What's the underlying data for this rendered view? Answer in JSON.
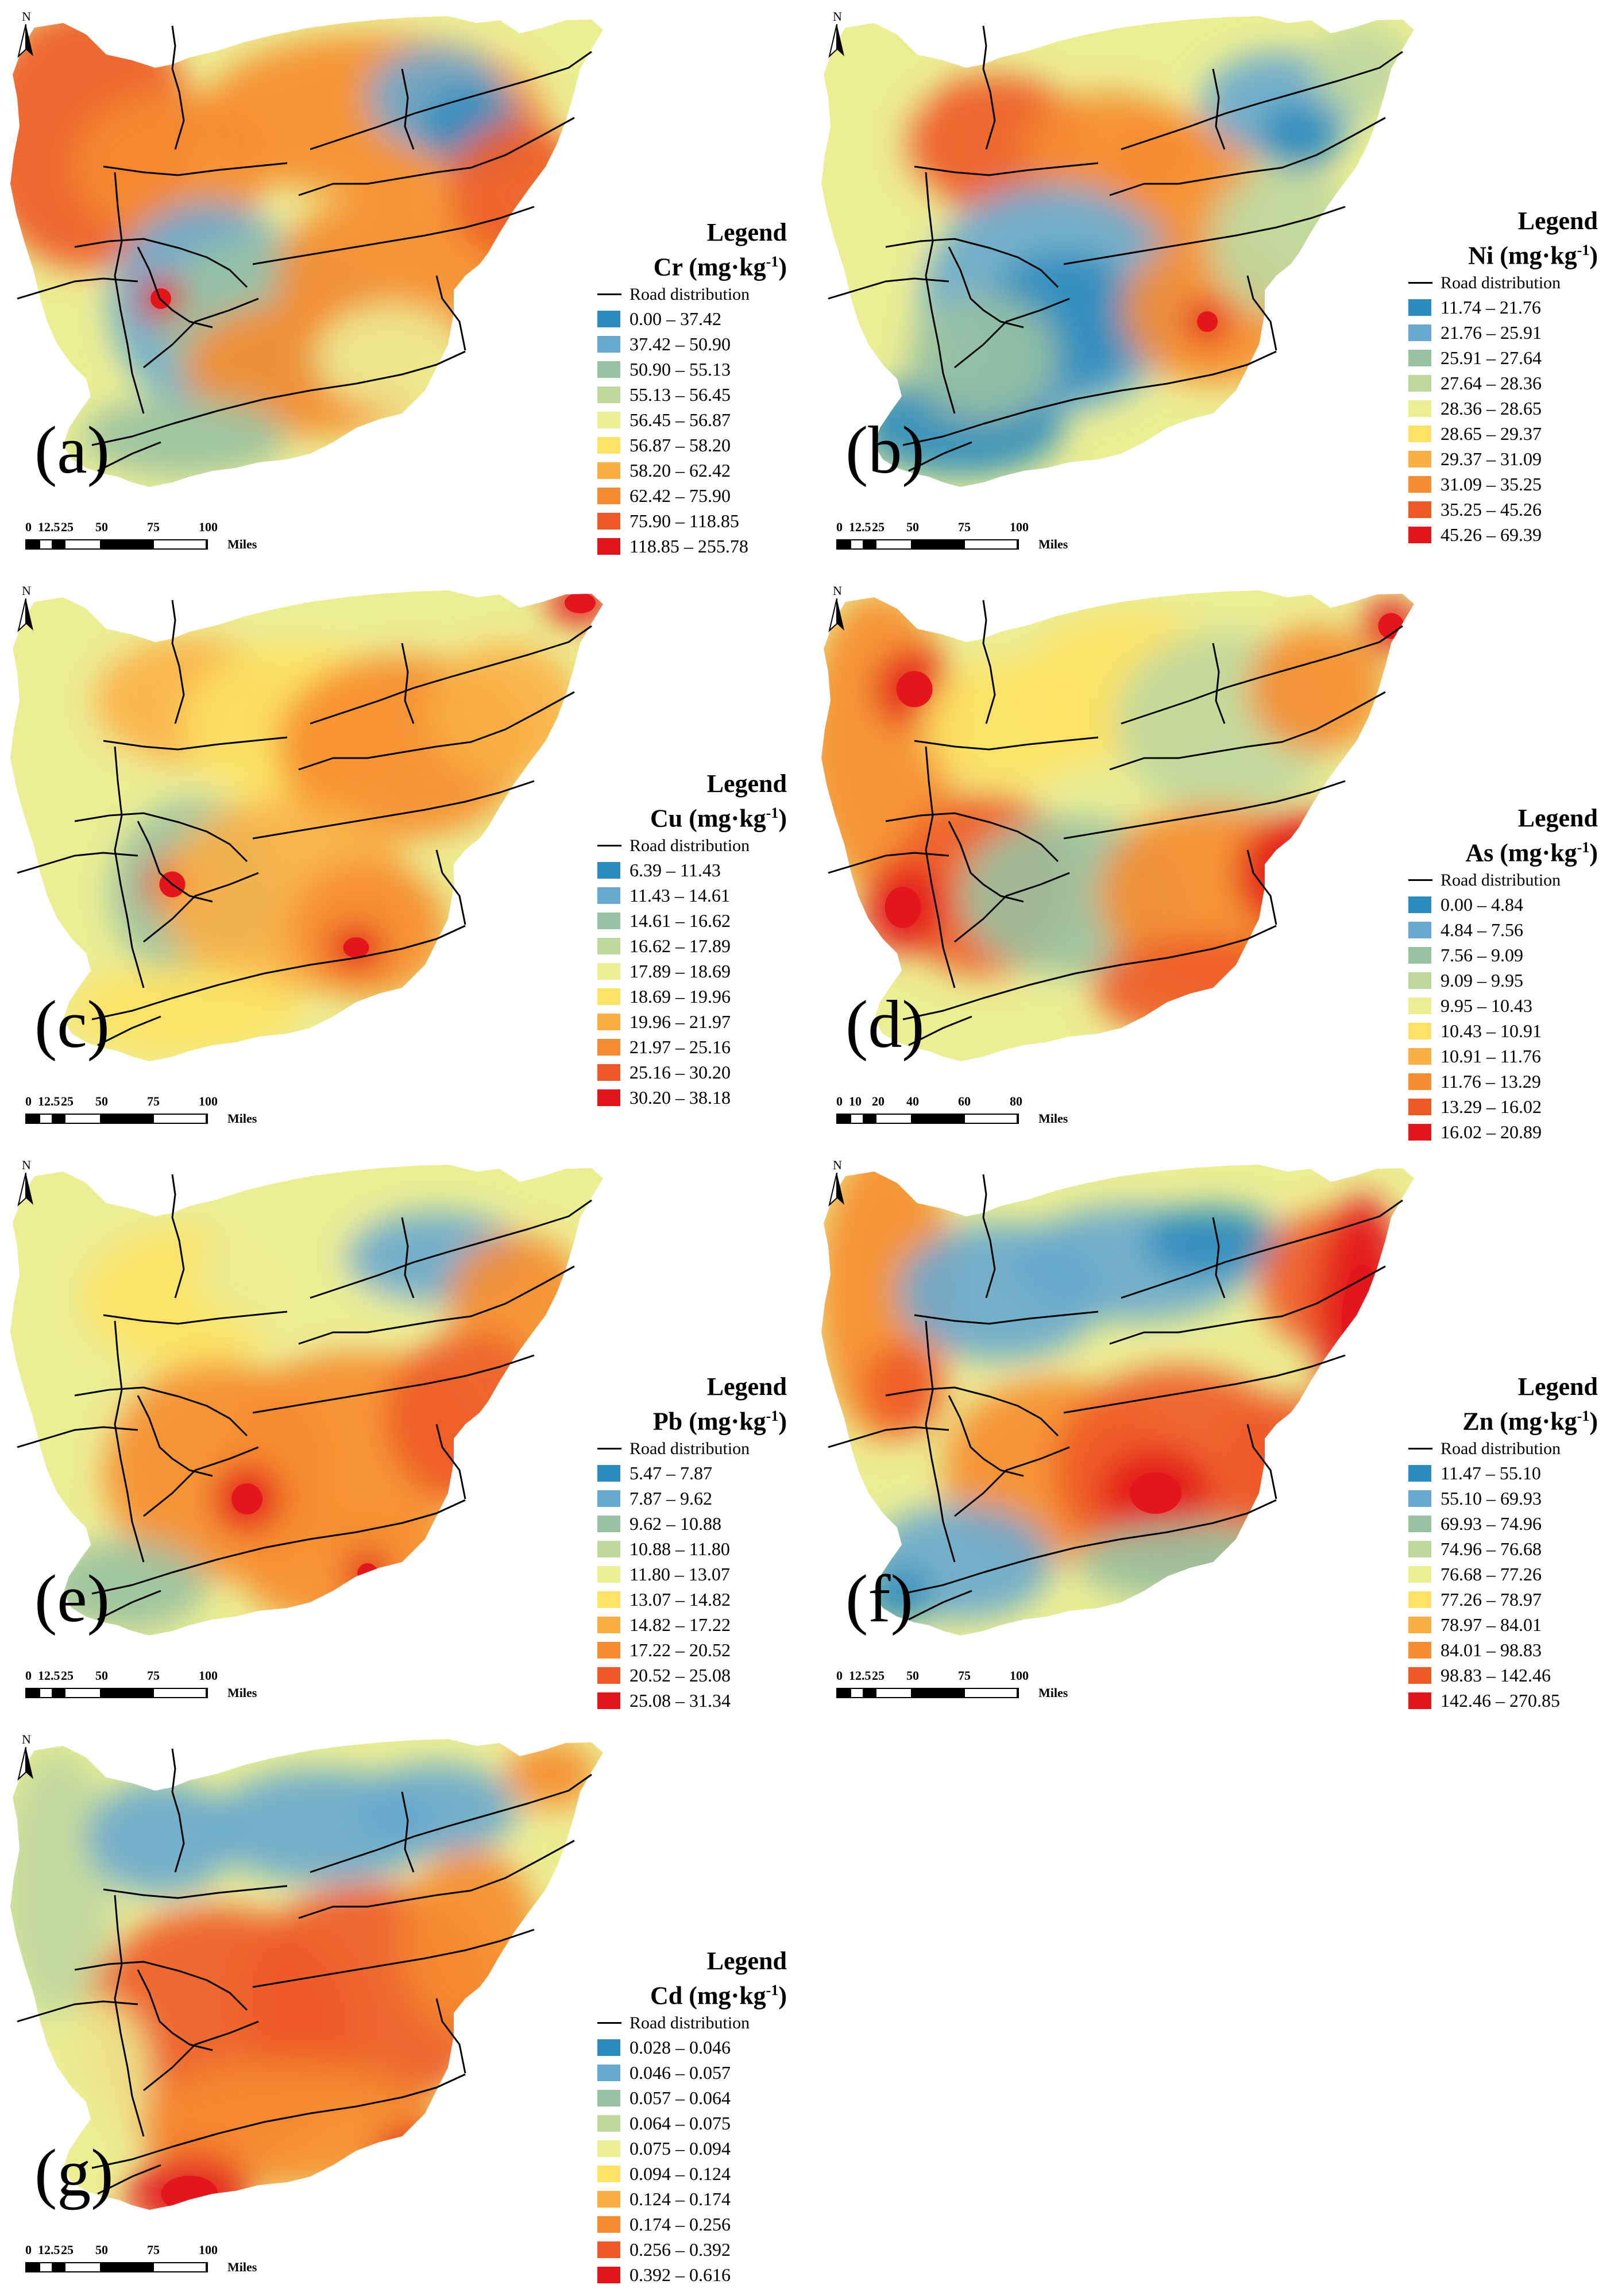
{
  "palette": [
    "#2b8cbe",
    "#67a9cf",
    "#99c2a2",
    "#bfd89e",
    "#ecee94",
    "#fde264",
    "#fbb045",
    "#f68c2f",
    "#ee5a25",
    "#e3161c"
  ],
  "road_label": "Road distribution",
  "north_label": "N",
  "legend_title": "Legend",
  "miles_label": "Miles",
  "panels": [
    {
      "label": "(a)",
      "element": "Cr",
      "unit": "(mg·kg",
      "unit_sup": "-1",
      "unit_close": ")",
      "classes": [
        "0.00 – 37.42",
        "37.42 – 50.90",
        "50.90 – 55.13",
        "55.13 – 56.45",
        "56.45 – 56.87",
        "56.87 – 58.20",
        "58.20 – 62.42",
        "62.42 – 75.90",
        "75.90 – 118.85",
        "118.85 – 255.78"
      ],
      "scale": [
        "0",
        "12.5",
        "25",
        "50",
        "75",
        "100"
      ]
    },
    {
      "label": "(b)",
      "element": "Ni",
      "unit": "(mg·kg",
      "unit_sup": "-1",
      "unit_close": ")",
      "classes": [
        "11.74 – 21.76",
        "21.76 – 25.91",
        "25.91 – 27.64",
        "27.64 – 28.36",
        "28.36 – 28.65",
        "28.65 – 29.37",
        "29.37 – 31.09",
        "31.09 – 35.25",
        "35.25 – 45.26",
        "45.26 – 69.39"
      ],
      "scale": [
        "0",
        "12.5",
        "25",
        "50",
        "75",
        "100"
      ]
    },
    {
      "label": "(c)",
      "element": "Cu",
      "unit": "(mg·kg",
      "unit_sup": "-1",
      "unit_close": ")",
      "classes": [
        "6.39 – 11.43",
        "11.43 – 14.61",
        "14.61 – 16.62",
        "16.62 – 17.89",
        "17.89 – 18.69",
        "18.69 – 19.96",
        "19.96 – 21.97",
        "21.97 – 25.16",
        "25.16 – 30.20",
        "30.20 – 38.18"
      ],
      "scale": [
        "0",
        "12.5",
        "25",
        "50",
        "75",
        "100"
      ]
    },
    {
      "label": "(d)",
      "element": "As",
      "unit": "(mg·kg",
      "unit_sup": "-1",
      "unit_close": ")",
      "classes": [
        "0.00 – 4.84",
        "4.84 – 7.56",
        "7.56 – 9.09",
        "9.09 – 9.95",
        "9.95 – 10.43",
        "10.43 – 10.91",
        "10.91 – 11.76",
        "11.76 – 13.29",
        "13.29 – 16.02",
        "16.02 – 20.89"
      ],
      "scale": [
        "0",
        "10",
        "20",
        "40",
        "60",
        "80"
      ]
    },
    {
      "label": "(e)",
      "element": "Pb",
      "unit": "(mg·kg",
      "unit_sup": "-1",
      "unit_close": ")",
      "classes": [
        "5.47 – 7.87",
        "7.87 – 9.62",
        "9.62 – 10.88",
        "10.88 – 11.80",
        "11.80 – 13.07",
        "13.07 – 14.82",
        "14.82 – 17.22",
        "17.22 – 20.52",
        "20.52 – 25.08",
        "25.08 – 31.34"
      ],
      "scale": [
        "0",
        "12.5",
        "25",
        "50",
        "75",
        "100"
      ]
    },
    {
      "label": "(f)",
      "element": "Zn",
      "unit": "(mg·kg",
      "unit_sup": "-1",
      "unit_close": ")",
      "classes": [
        "11.47 – 55.10",
        "55.10 – 69.93",
        "69.93 – 74.96",
        "74.96 – 76.68",
        "76.68 – 77.26",
        "77.26 – 78.97",
        "78.97 – 84.01",
        "84.01 – 98.83",
        "98.83 – 142.46",
        "142.46 – 270.85"
      ],
      "scale": [
        "0",
        "12.5",
        "25",
        "50",
        "75",
        "100"
      ]
    },
    {
      "label": "(g)",
      "element": "Cd",
      "unit": "(mg·kg",
      "unit_sup": "-1",
      "unit_close": ")",
      "classes": [
        "0.028 – 0.046",
        "0.046 – 0.057",
        "0.057 – 0.064",
        "0.064 – 0.075",
        "0.075 – 0.094",
        "0.094 – 0.124",
        "0.124 – 0.174",
        "0.174 – 0.256",
        "0.256 – 0.392",
        "0.392 – 0.616"
      ],
      "scale": [
        "0",
        "12.5",
        "25",
        "50",
        "75",
        "100"
      ]
    }
  ]
}
